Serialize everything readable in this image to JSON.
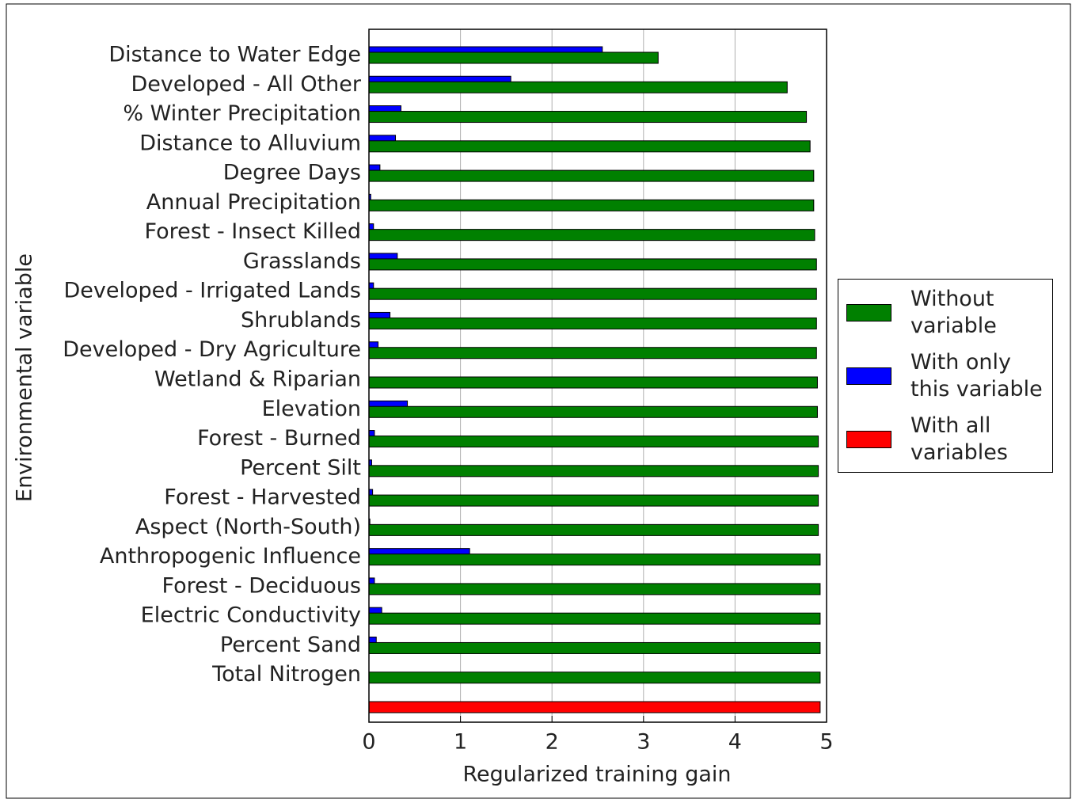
{
  "chart_data": {
    "type": "barh",
    "xlabel": "Regularized training gain",
    "ylabel": "Environmental variable",
    "categories": [
      "Distance to Water Edge",
      "Developed - All Other",
      "% Winter Precipitation",
      "Distance to Alluvium",
      "Degree Days",
      "Annual Precipitation",
      "Forest - Insect Killed",
      "Grasslands",
      "Developed - Irrigated Lands",
      "Shrublands",
      "Developed - Dry Agriculture",
      "Wetland & Riparian",
      "Elevation",
      "Forest - Burned",
      "Percent Silt",
      "Forest - Harvested",
      "Aspect (North-South)",
      "Anthropogenic Influence",
      "Forest - Deciduous",
      "Electric Conductivity",
      "Percent Sand",
      "Total Nitrogen",
      null
    ],
    "series": [
      {
        "name": "Without variable",
        "color": "#008000",
        "values": [
          3.16,
          4.57,
          4.78,
          4.82,
          4.86,
          4.86,
          4.87,
          4.89,
          4.89,
          4.89,
          4.89,
          4.9,
          4.9,
          4.91,
          4.91,
          4.91,
          4.91,
          4.93,
          4.93,
          4.93,
          4.93,
          4.93,
          null
        ]
      },
      {
        "name": "With only this variable",
        "color": "#0000ff",
        "values": [
          2.55,
          1.55,
          0.35,
          0.29,
          0.12,
          0.02,
          0.05,
          0.31,
          0.05,
          0.23,
          0.1,
          0.0,
          0.42,
          0.06,
          0.03,
          0.04,
          0.01,
          1.1,
          0.06,
          0.14,
          0.08,
          0.0,
          null
        ]
      },
      {
        "name": "With all variables",
        "color": "#ff0000",
        "values": [
          null,
          null,
          null,
          null,
          null,
          null,
          null,
          null,
          null,
          null,
          null,
          null,
          null,
          null,
          null,
          null,
          null,
          null,
          null,
          null,
          null,
          null,
          4.93
        ]
      }
    ],
    "xlim": [
      0,
      5
    ],
    "xticks": [
      0,
      1,
      2,
      3,
      4,
      5
    ],
    "grid": true
  }
}
